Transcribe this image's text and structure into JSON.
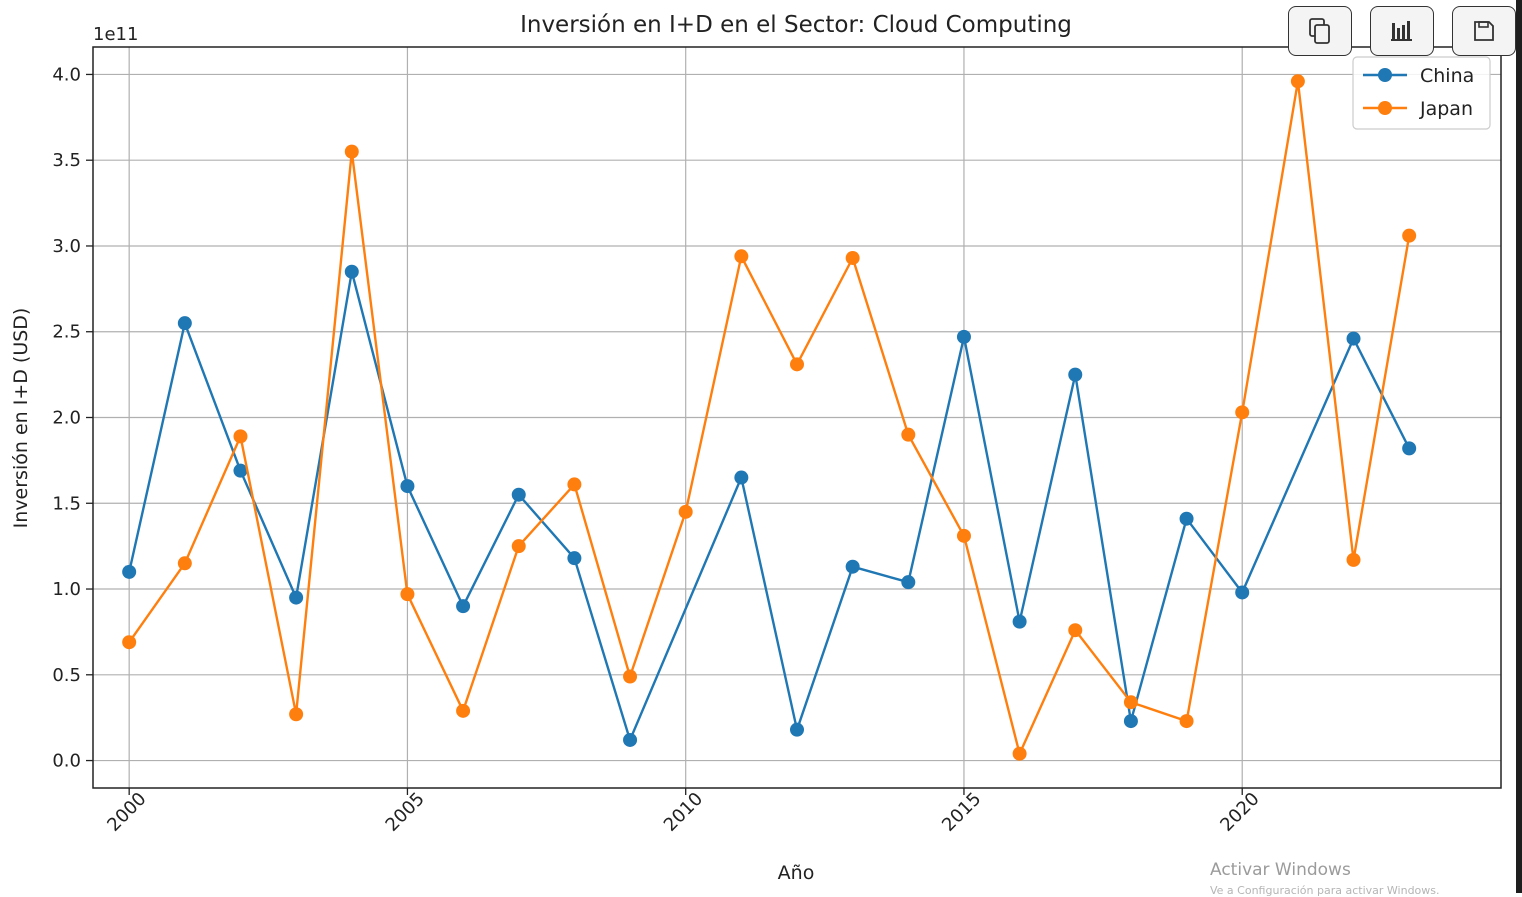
{
  "toolbar": {
    "buttons": [
      {
        "icon": "copy-icon"
      },
      {
        "icon": "bar-chart-icon"
      },
      {
        "icon": "save-icon"
      }
    ]
  },
  "watermark": {
    "line1": "Activar Windows",
    "line2": "Ve a Configuración para activar Windows."
  },
  "chart_data": {
    "type": "line",
    "title": "Inversión en I+D en el Sector: Cloud Computing",
    "xlabel": "Año",
    "ylabel": "Inversión en I+D (USD)",
    "y_offset_label": "1e11",
    "xlim": [
      1999.35,
      2024.65
    ],
    "ylim": [
      -0.16,
      4.16
    ],
    "xticks": [
      2000,
      2005,
      2010,
      2015,
      2020
    ],
    "xtick_labels": [
      "2000",
      "2005",
      "2010",
      "2015",
      "2020"
    ],
    "yticks": [
      0.0,
      0.5,
      1.0,
      1.5,
      2.0,
      2.5,
      3.0,
      3.5,
      4.0
    ],
    "ytick_labels": [
      "0.0",
      "0.5",
      "1.0",
      "1.5",
      "2.0",
      "2.5",
      "3.0",
      "3.5",
      "4.0"
    ],
    "grid": true,
    "legend_position": "upper right",
    "series": [
      {
        "name": "China",
        "color": "#1f77b4",
        "x": [
          2000,
          2001,
          2002,
          2003,
          2004,
          2005,
          2006,
          2007,
          2008,
          2009,
          2011,
          2012,
          2013,
          2014,
          2015,
          2016,
          2017,
          2018,
          2019,
          2020,
          2022,
          2023
        ],
        "y": [
          1.1,
          2.55,
          1.69,
          0.95,
          2.85,
          1.6,
          0.9,
          1.55,
          1.18,
          0.12,
          1.65,
          0.18,
          1.13,
          1.04,
          2.47,
          0.81,
          2.25,
          0.23,
          1.41,
          0.98,
          2.46,
          1.82
        ]
      },
      {
        "name": "Japan",
        "color": "#ff7f0e",
        "x": [
          2000,
          2001,
          2002,
          2003,
          2004,
          2005,
          2006,
          2007,
          2008,
          2009,
          2010,
          2011,
          2012,
          2013,
          2014,
          2015,
          2016,
          2017,
          2018,
          2019,
          2020,
          2021,
          2022,
          2023
        ],
        "y": [
          0.69,
          1.15,
          1.89,
          0.27,
          3.55,
          0.97,
          0.29,
          1.25,
          1.61,
          0.49,
          1.45,
          2.94,
          2.31,
          2.93,
          1.9,
          1.31,
          0.04,
          0.76,
          0.34,
          0.23,
          2.03,
          3.96,
          1.17,
          3.06
        ]
      }
    ]
  }
}
